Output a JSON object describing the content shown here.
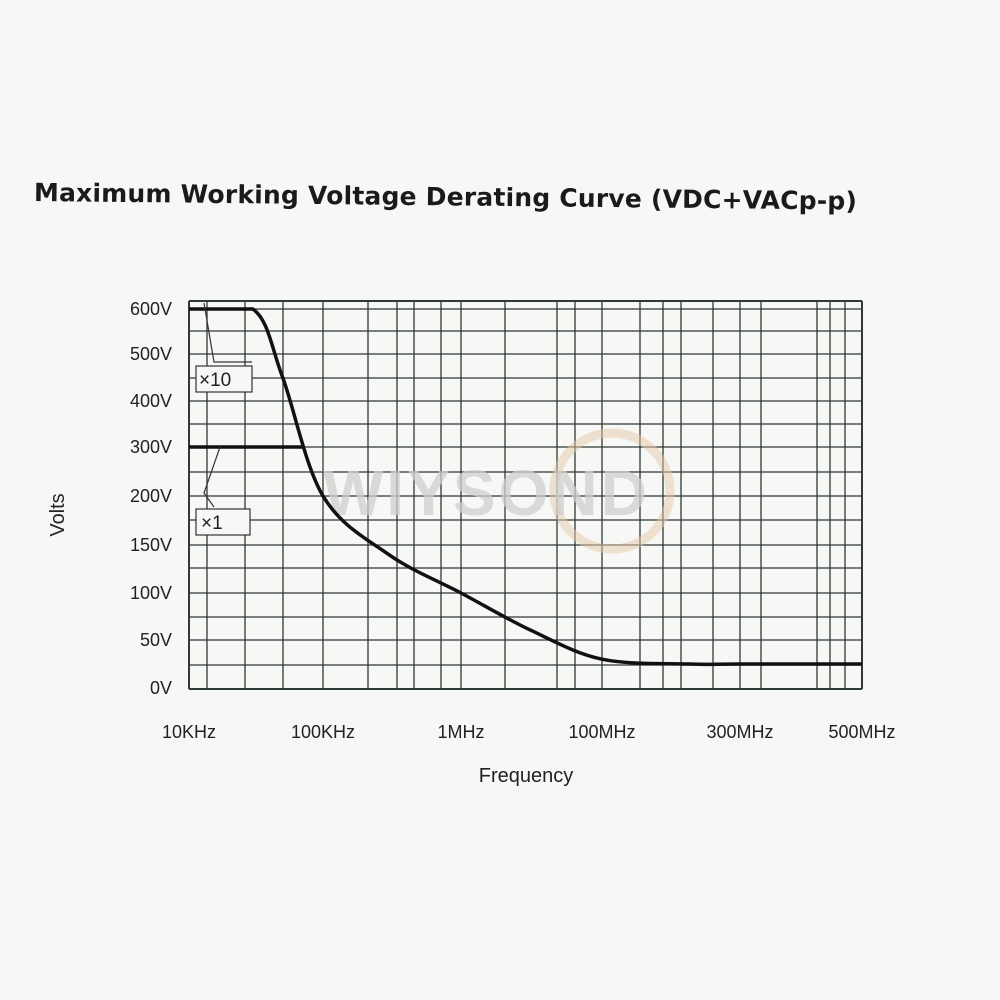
{
  "chart_data": {
    "type": "line",
    "title": "Maximum Working Voltage Derating Curve (VDC+VACp-p)",
    "xlabel": "Frequency",
    "ylabel": "Volts",
    "x_ticks": [
      "10KHz",
      "100KHz",
      "1MHz",
      "100MHz",
      "300MHz",
      "500MHz"
    ],
    "y_ticks": [
      "0V",
      "50V",
      "100V",
      "150V",
      "200V",
      "300V",
      "400V",
      "500V",
      "600V"
    ],
    "grid": true,
    "series": [
      {
        "name": "×10",
        "x": [
          "10KHz",
          "30KHz",
          "50KHz",
          "100KHz",
          "300KHz",
          "1MHz",
          "10MHz",
          "100MHz",
          "200MHz",
          "300MHz",
          "500MHz"
        ],
        "y": [
          600,
          600,
          450,
          200,
          140,
          100,
          60,
          30,
          25,
          25,
          25
        ]
      },
      {
        "name": "×1",
        "x": [
          "10KHz",
          "70KHz"
        ],
        "y": [
          300,
          300
        ]
      }
    ],
    "annotations": [
      "×10",
      "×1"
    ],
    "watermark": "WIYSOND",
    "line_color": "#111111",
    "grid_color": "#2e3a33"
  }
}
